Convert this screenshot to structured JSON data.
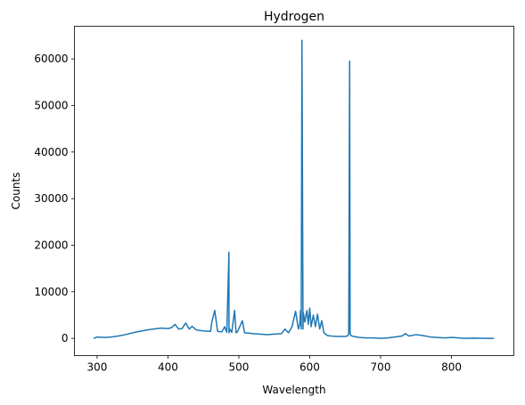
{
  "chart_data": {
    "type": "line",
    "title": "Hydrogen",
    "xlabel": "Wavelength",
    "ylabel": "Counts",
    "xlim": [
      268,
      888
    ],
    "ylim": [
      -3700,
      67000
    ],
    "xticks": [
      300,
      400,
      500,
      600,
      700,
      800
    ],
    "yticks": [
      0,
      10000,
      20000,
      30000,
      40000,
      50000,
      60000
    ],
    "grid": false,
    "legend": "none",
    "series": [
      {
        "color": "#1f77b4",
        "x": [
          295,
          300,
          310,
          320,
          330,
          340,
          350,
          360,
          370,
          380,
          390,
          400,
          405,
          410,
          415,
          420,
          425,
          430,
          434,
          440,
          450,
          460,
          462,
          466,
          470,
          476,
          480,
          483,
          486,
          486.1,
          487,
          490,
          494,
          496,
          498,
          505,
          508,
          515,
          520,
          530,
          540,
          550,
          560,
          565,
          570,
          575,
          580,
          584,
          586,
          587,
          588,
          589,
          589.6,
          590.5,
          591,
          593,
          596,
          598,
          600,
          602,
          605,
          608,
          611,
          614,
          617,
          620,
          625,
          630,
          640,
          650,
          654,
          655,
          656.3,
          657,
          658,
          662,
          670,
          680,
          690,
          700,
          710,
          720,
          730,
          735,
          740,
          750,
          760,
          770,
          780,
          790,
          800,
          810,
          820,
          830,
          840,
          850,
          860
        ],
        "y": [
          0,
          300,
          200,
          300,
          500,
          800,
          1200,
          1500,
          1800,
          2000,
          2200,
          2100,
          2300,
          3000,
          2000,
          2100,
          3300,
          2000,
          2600,
          1800,
          1600,
          1500,
          3600,
          6000,
          1500,
          1400,
          2500,
          1300,
          18500,
          1200,
          2000,
          1300,
          6000,
          1200,
          1400,
          3800,
          1200,
          1100,
          1000,
          900,
          800,
          900,
          1000,
          2000,
          1200,
          2500,
          5800,
          2000,
          3000,
          6000,
          2000,
          64000,
          42000,
          2000,
          5500,
          3500,
          6000,
          3000,
          6500,
          2500,
          5000,
          2500,
          5200,
          2000,
          3800,
          1200,
          600,
          500,
          400,
          400,
          600,
          1000,
          59500,
          1000,
          600,
          400,
          200,
          100,
          100,
          0,
          100,
          300,
          500,
          1000,
          500,
          800,
          600,
          300,
          200,
          100,
          200,
          100,
          0,
          50,
          20,
          0,
          0
        ]
      }
    ]
  }
}
